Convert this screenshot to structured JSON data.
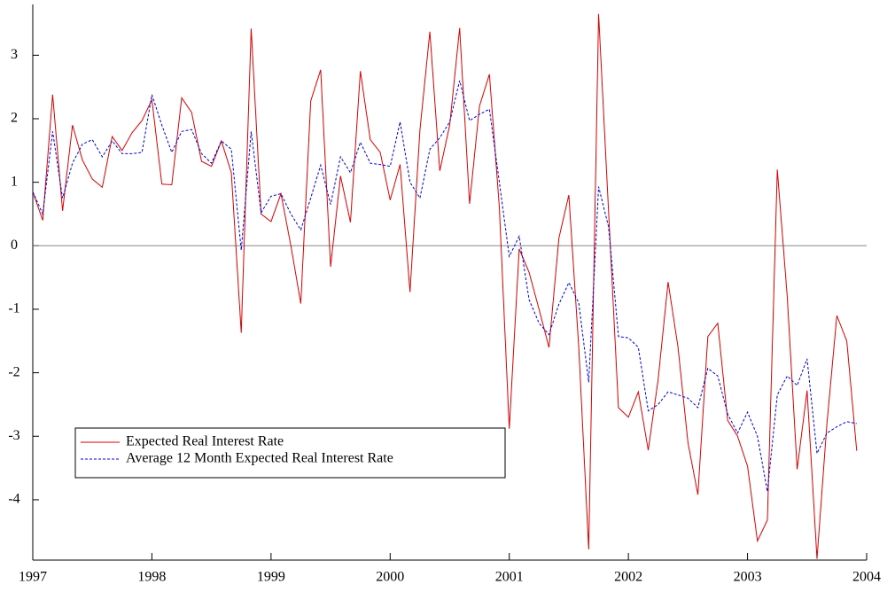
{
  "chart_data": {
    "type": "line",
    "x": [
      1997,
      1997.0833,
      1997.1667,
      1997.25,
      1997.3333,
      1997.4167,
      1997.5,
      1997.5833,
      1997.6667,
      1997.75,
      1997.8333,
      1997.9167,
      1998,
      1998.0833,
      1998.1667,
      1998.25,
      1998.3333,
      1998.4167,
      1998.5,
      1998.5833,
      1998.6667,
      1998.75,
      1998.8333,
      1998.9167,
      1999,
      1999.0833,
      1999.1667,
      1999.25,
      1999.3333,
      1999.4167,
      1999.5,
      1999.5833,
      1999.6667,
      1999.75,
      1999.8333,
      1999.9167,
      2000,
      2000.0833,
      2000.1667,
      2000.25,
      2000.3333,
      2000.4167,
      2000.5,
      2000.5833,
      2000.6667,
      2000.75,
      2000.8333,
      2000.9167,
      2001,
      2001.0833,
      2001.1667,
      2001.25,
      2001.3333,
      2001.4167,
      2001.5,
      2001.5833,
      2001.6667,
      2001.75,
      2001.8333,
      2001.9167,
      2002,
      2002.0833,
      2002.1667,
      2002.25,
      2002.3333,
      2002.4167,
      2002.5,
      2002.5833,
      2002.6667,
      2002.75,
      2002.8333,
      2002.9167,
      2003,
      2003.0833,
      2003.1667,
      2003.25,
      2003.3333,
      2003.4167,
      2003.5,
      2003.5833,
      2003.6667,
      2003.75,
      2003.8333,
      2003.9167
    ],
    "series": [
      {
        "name": "Expected Real Interest Rate",
        "color": "#e00000",
        "dash": false,
        "values": [
          0.85,
          0.4,
          2.38,
          0.55,
          1.9,
          1.35,
          1.05,
          0.92,
          1.72,
          1.5,
          1.78,
          1.97,
          2.3,
          0.97,
          0.96,
          2.33,
          2.1,
          1.33,
          1.25,
          1.65,
          1.15,
          -1.37,
          3.42,
          0.5,
          0.38,
          0.82,
          0.0,
          -0.91,
          2.28,
          2.77,
          -0.33,
          1.1,
          0.37,
          2.75,
          1.67,
          1.47,
          0.72,
          1.28,
          -0.73,
          1.82,
          3.37,
          1.18,
          1.9,
          3.43,
          0.66,
          2.2,
          2.7,
          0.6,
          -2.88,
          -0.05,
          -0.42,
          -1.0,
          -1.6,
          0.12,
          0.8,
          -1.6,
          -4.78,
          3.65,
          0.55,
          -2.55,
          -2.7,
          -2.3,
          -3.22,
          -2.1,
          -0.57,
          -1.6,
          -3.1,
          -3.92,
          -1.43,
          -1.22,
          -2.75,
          -3.0,
          -3.47,
          -4.65,
          -4.32,
          1.2,
          -0.8,
          -3.52,
          -2.28,
          -4.93,
          -2.8,
          -1.1,
          -1.5,
          -3.23
        ]
      },
      {
        "name": "Average 12 Month Expected Real Interest Rate",
        "color": "#0000e0",
        "dash": true,
        "values": [
          0.85,
          0.5,
          1.8,
          0.75,
          1.3,
          1.6,
          1.67,
          1.4,
          1.65,
          1.45,
          1.45,
          1.47,
          2.38,
          1.9,
          1.47,
          1.8,
          1.83,
          1.45,
          1.3,
          1.65,
          1.52,
          -0.07,
          1.8,
          0.52,
          0.78,
          0.82,
          0.5,
          0.25,
          0.75,
          1.27,
          0.65,
          1.4,
          1.15,
          1.63,
          1.3,
          1.28,
          1.25,
          1.95,
          1.0,
          0.75,
          1.52,
          1.7,
          1.95,
          2.6,
          1.97,
          2.07,
          2.15,
          1.0,
          -0.17,
          0.15,
          -0.85,
          -1.22,
          -1.4,
          -0.92,
          -0.58,
          -0.9,
          -2.15,
          0.93,
          0.3,
          -1.43,
          -1.45,
          -1.6,
          -2.6,
          -2.5,
          -2.3,
          -2.35,
          -2.4,
          -2.55,
          -1.93,
          -2.05,
          -2.65,
          -2.95,
          -2.62,
          -3.0,
          -3.87,
          -2.35,
          -2.05,
          -2.2,
          -1.78,
          -3.27,
          -2.95,
          -2.85,
          -2.77,
          -2.8
        ]
      }
    ],
    "xlim": [
      1997,
      2004
    ],
    "xticks": [
      1997,
      1998,
      1999,
      2000,
      2001,
      2002,
      2003,
      2004
    ],
    "ylim": [
      -4.95,
      3.8
    ],
    "yticks": [
      -4,
      -3,
      -2,
      -1,
      0,
      1,
      2,
      3
    ],
    "zero_line": true,
    "legend": "lower left"
  }
}
